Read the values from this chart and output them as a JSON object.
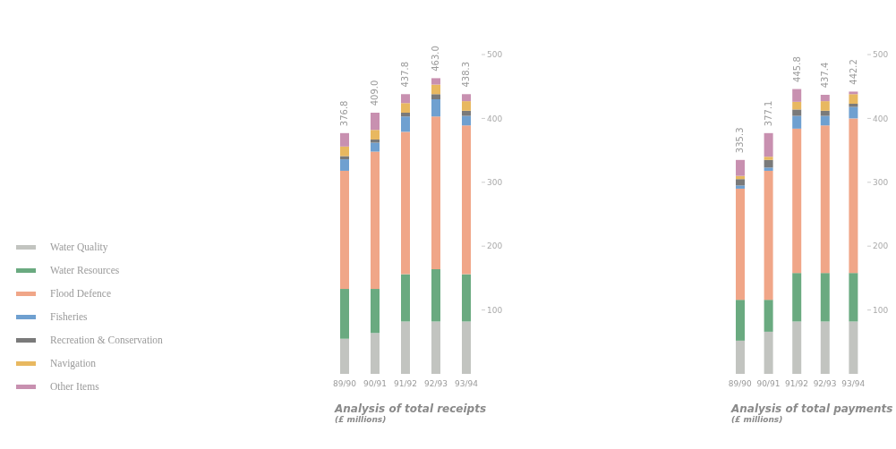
{
  "chart_data": [
    {
      "type": "bar",
      "title": "Analysis of total receipts",
      "subtitle": "(£ millions)",
      "stacked": true,
      "legend": "left",
      "categories": [
        "89/90",
        "90/91",
        "91/92",
        "92/93",
        "93/94"
      ],
      "ylim": [
        0,
        500
      ],
      "yticks": [
        100,
        200,
        300,
        400,
        500
      ],
      "totals": [
        "376.8",
        "409.0",
        "437.8",
        "463.0",
        "438.3"
      ],
      "series": [
        {
          "name": "Water Quality",
          "color": "#c2c4c0",
          "values": [
            55,
            64,
            82,
            82,
            82
          ]
        },
        {
          "name": "Water Resources",
          "color": "#6aaa80",
          "values": [
            78,
            69,
            74,
            82,
            74
          ]
        },
        {
          "name": "Flood Defence",
          "color": "#f0a688",
          "values": [
            185,
            215,
            223,
            239,
            233
          ]
        },
        {
          "name": "Fisheries",
          "color": "#6fa0d0",
          "values": [
            18,
            14,
            24,
            27,
            15
          ]
        },
        {
          "name": "Recreation & Conservation",
          "color": "#7a7a7a",
          "values": [
            5,
            5,
            6,
            8,
            8
          ]
        },
        {
          "name": "Navigation",
          "color": "#e8b860",
          "values": [
            15,
            15,
            15,
            15,
            15
          ]
        },
        {
          "name": "Other Items",
          "color": "#c890b0",
          "values": [
            21,
            27,
            14,
            10,
            11
          ]
        }
      ]
    },
    {
      "type": "bar",
      "title": "Analysis of total payments",
      "subtitle": "(£ millions)",
      "stacked": true,
      "categories": [
        "89/90",
        "90/91",
        "91/92",
        "92/93",
        "93/94"
      ],
      "ylim": [
        0,
        500
      ],
      "yticks": [
        100,
        200,
        300,
        400,
        500
      ],
      "totals": [
        "335.3",
        "377.1",
        "445.8",
        "437.4",
        "442.2"
      ],
      "series": [
        {
          "color": "#c2c4c0",
          "values": [
            52,
            66,
            82,
            82,
            82
          ]
        },
        {
          "color": "#6aaa80",
          "values": [
            64,
            50,
            76,
            76,
            76
          ]
        },
        {
          "color": "#f0a688",
          "values": [
            174,
            202,
            226,
            231,
            242
          ]
        },
        {
          "color": "#6fa0d0",
          "values": [
            5,
            5,
            20,
            15,
            18
          ]
        },
        {
          "color": "#7a7a7a",
          "values": [
            10,
            12,
            10,
            8,
            5
          ]
        },
        {
          "color": "#e8b860",
          "values": [
            5,
            5,
            12,
            15,
            15
          ]
        },
        {
          "color": "#c890b0",
          "values": [
            25,
            37,
            20,
            10,
            4
          ]
        }
      ]
    }
  ]
}
